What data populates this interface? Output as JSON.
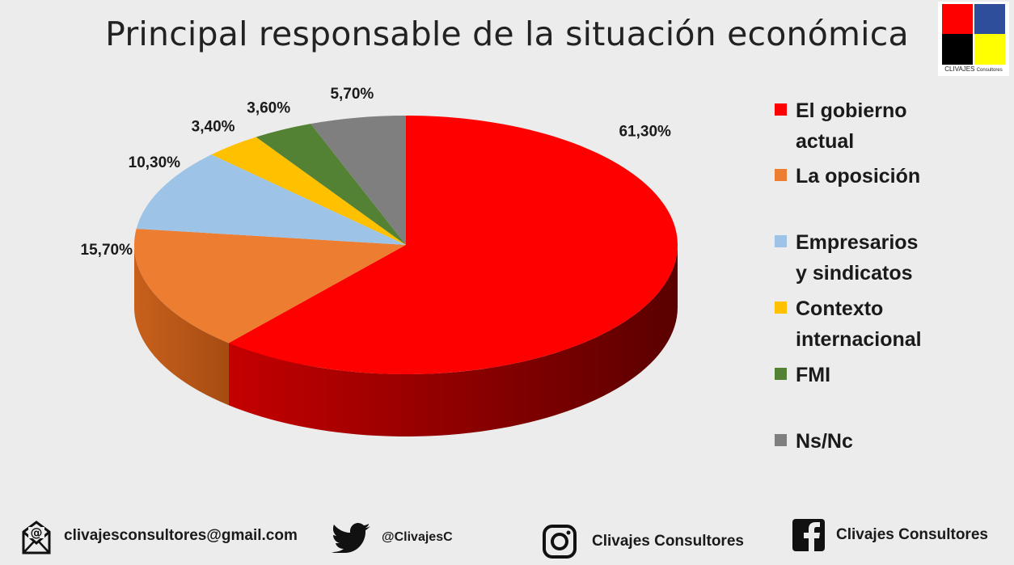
{
  "title": "Principal responsable de la situación económica",
  "logo": {
    "text": "CLIVAJES",
    "subtext": "Consultores",
    "colors": [
      "#ff0000",
      "#2e4e9c",
      "#000000",
      "#ffff00"
    ]
  },
  "chart_data": {
    "type": "pie",
    "title": "Principal responsable de la situación económica",
    "style": "3d",
    "legend_position": "right",
    "slices": [
      {
        "label": "El gobierno actual",
        "value": 61.3,
        "display": "61,30%",
        "color": "#ff0000"
      },
      {
        "label": "La oposición",
        "value": 15.7,
        "display": "15,70%",
        "color": "#ed7d31"
      },
      {
        "label": "Empresarios y sindicatos",
        "value": 10.3,
        "display": "10,30%",
        "color": "#9dc3e6"
      },
      {
        "label": "Contexto internacional",
        "value": 3.4,
        "display": "3,40%",
        "color": "#ffc000"
      },
      {
        "label": "FMI",
        "value": 3.6,
        "display": "3,60%",
        "color": "#548235"
      },
      {
        "label": "Ns/Nc",
        "value": 5.7,
        "display": "5,70%",
        "color": "#7f7f7f"
      }
    ]
  },
  "legend": {
    "items": [
      {
        "line1": "El gobierno",
        "line2": "actual",
        "color": "#ff0000"
      },
      {
        "line1": "La oposición",
        "line2": "",
        "color": "#ed7d31"
      },
      {
        "line1": "Empresarios",
        "line2": "y sindicatos",
        "color": "#9dc3e6"
      },
      {
        "line1": "Contexto",
        "line2": "internacional",
        "color": "#ffc000"
      },
      {
        "line1": "FMI",
        "line2": "",
        "color": "#548235"
      },
      {
        "line1": "Ns/Nc",
        "line2": "",
        "color": "#7f7f7f"
      }
    ]
  },
  "footer": {
    "email": "clivajesconsultores@gmail.com",
    "twitter": "@ClivajesC",
    "instagram": "Clivajes Consultores",
    "facebook": "Clivajes Consultores",
    "icons": [
      "email-icon",
      "twitter-icon",
      "instagram-icon",
      "facebook-icon"
    ]
  }
}
